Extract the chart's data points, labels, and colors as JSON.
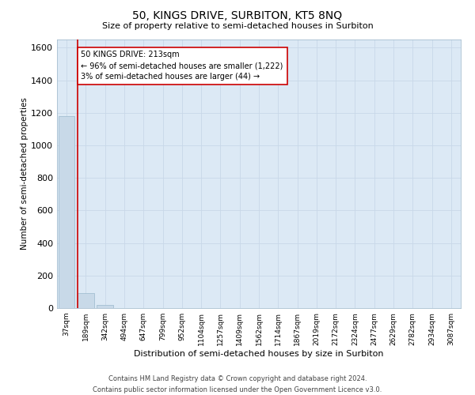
{
  "title": "50, KINGS DRIVE, SURBITON, KT5 8NQ",
  "subtitle": "Size of property relative to semi-detached houses in Surbiton",
  "xlabel": "Distribution of semi-detached houses by size in Surbiton",
  "ylabel": "Number of semi-detached properties",
  "categories": [
    "37sqm",
    "189sqm",
    "342sqm",
    "494sqm",
    "647sqm",
    "799sqm",
    "952sqm",
    "1104sqm",
    "1257sqm",
    "1409sqm",
    "1562sqm",
    "1714sqm",
    "1867sqm",
    "2019sqm",
    "2172sqm",
    "2324sqm",
    "2477sqm",
    "2629sqm",
    "2782sqm",
    "2934sqm",
    "3087sqm"
  ],
  "values": [
    1180,
    90,
    18,
    2,
    0,
    0,
    0,
    0,
    0,
    0,
    0,
    0,
    0,
    0,
    0,
    0,
    0,
    0,
    0,
    0,
    0
  ],
  "bar_color": "#c8d9e8",
  "redline_color": "#cc0000",
  "redline_bar_index": 1,
  "annotation_text": "50 KINGS DRIVE: 213sqm\n← 96% of semi-detached houses are smaller (1,222)\n3% of semi-detached houses are larger (44) →",
  "annotation_box_facecolor": "#ffffff",
  "annotation_box_edgecolor": "#cc0000",
  "ylim": [
    0,
    1650
  ],
  "yticks": [
    0,
    200,
    400,
    600,
    800,
    1000,
    1200,
    1400,
    1600
  ],
  "grid_color": "#c8d8e8",
  "bg_color": "#dce9f5",
  "footer1": "Contains HM Land Registry data © Crown copyright and database right 2024.",
  "footer2": "Contains public sector information licensed under the Open Government Licence v3.0."
}
